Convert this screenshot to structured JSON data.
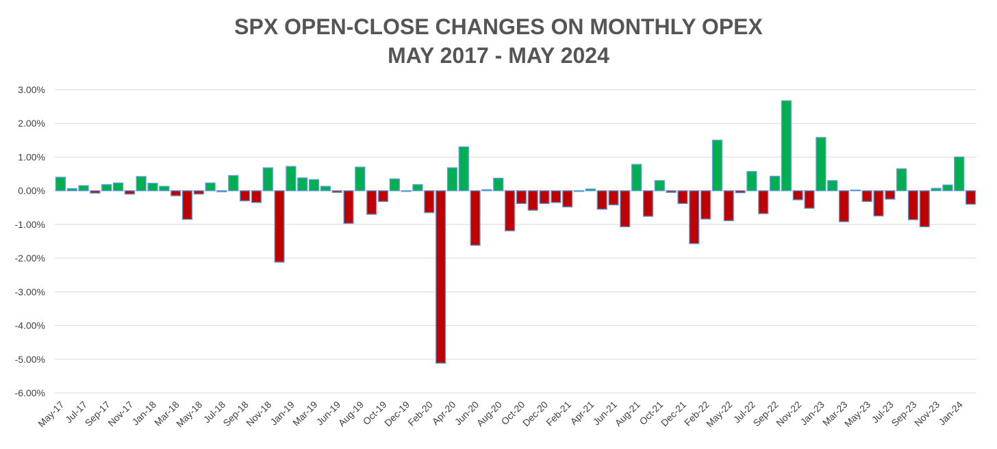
{
  "chart_data": {
    "type": "bar",
    "title": "SPX OPEN-CLOSE CHANGES ON MONTHLY OPEX",
    "subtitle": "MAY 2017 - MAY 2024",
    "xlabel": "",
    "ylabel": "",
    "ylim": [
      -6.0,
      3.0
    ],
    "y_ticks": [
      "3.00%",
      "2.00%",
      "1.00%",
      "0.00%",
      "-1.00%",
      "-2.00%",
      "-3.00%",
      "-4.00%",
      "-5.00%",
      "-6.00%"
    ],
    "x_tick_labels": [
      "May-17",
      "Jul-17",
      "Sep-17",
      "Nov-17",
      "Jan-18",
      "Mar-18",
      "May-18",
      "Jul-18",
      "Sep-18",
      "Nov-18",
      "Jan-19",
      "Mar-19",
      "Jun-19",
      "Aug-19",
      "Oct-19",
      "Dec-19",
      "Feb-20",
      "Apr-20",
      "Jun-20",
      "Aug-20",
      "Oct-20",
      "Dec-20",
      "Feb-21",
      "Apr-21",
      "Jun-21",
      "Aug-21",
      "Oct-21",
      "Dec-21",
      "Feb-22",
      "May-22",
      "Jul-22",
      "Sep-22",
      "Nov-22",
      "Jan-23",
      "Mar-23",
      "May-23",
      "Jul-23",
      "Sep-23",
      "Nov-23",
      "Jan-24"
    ],
    "values": [
      0.4,
      0.06,
      0.15,
      -0.07,
      0.18,
      0.23,
      -0.1,
      0.42,
      0.22,
      0.13,
      -0.15,
      -0.85,
      -0.1,
      0.23,
      -0.03,
      0.45,
      -0.3,
      -0.35,
      0.68,
      -2.12,
      0.72,
      0.38,
      0.33,
      0.13,
      -0.05,
      -0.97,
      0.7,
      -0.7,
      -0.32,
      0.35,
      -0.02,
      0.18,
      -0.65,
      -5.12,
      0.68,
      1.3,
      -1.62,
      0.03,
      0.37,
      -1.19,
      -0.38,
      -0.58,
      -0.38,
      -0.35,
      -0.48,
      -0.02,
      0.05,
      -0.55,
      -0.42,
      -1.07,
      0.78,
      -0.76,
      0.3,
      -0.05,
      -0.38,
      -1.57,
      -0.84,
      1.5,
      -0.89,
      -0.06,
      0.57,
      -0.68,
      0.43,
      2.67,
      -0.27,
      -0.52,
      1.58,
      0.3,
      -0.92,
      0.02,
      -0.32,
      -0.75,
      -0.25,
      0.65,
      -0.86,
      -1.07,
      0.07,
      0.17,
      1.0,
      -0.4
    ],
    "positive_color": "#00b050",
    "negative_color": "#c00000",
    "bar_border_color": "#5b9bd5",
    "grid": true,
    "legend": "none"
  }
}
